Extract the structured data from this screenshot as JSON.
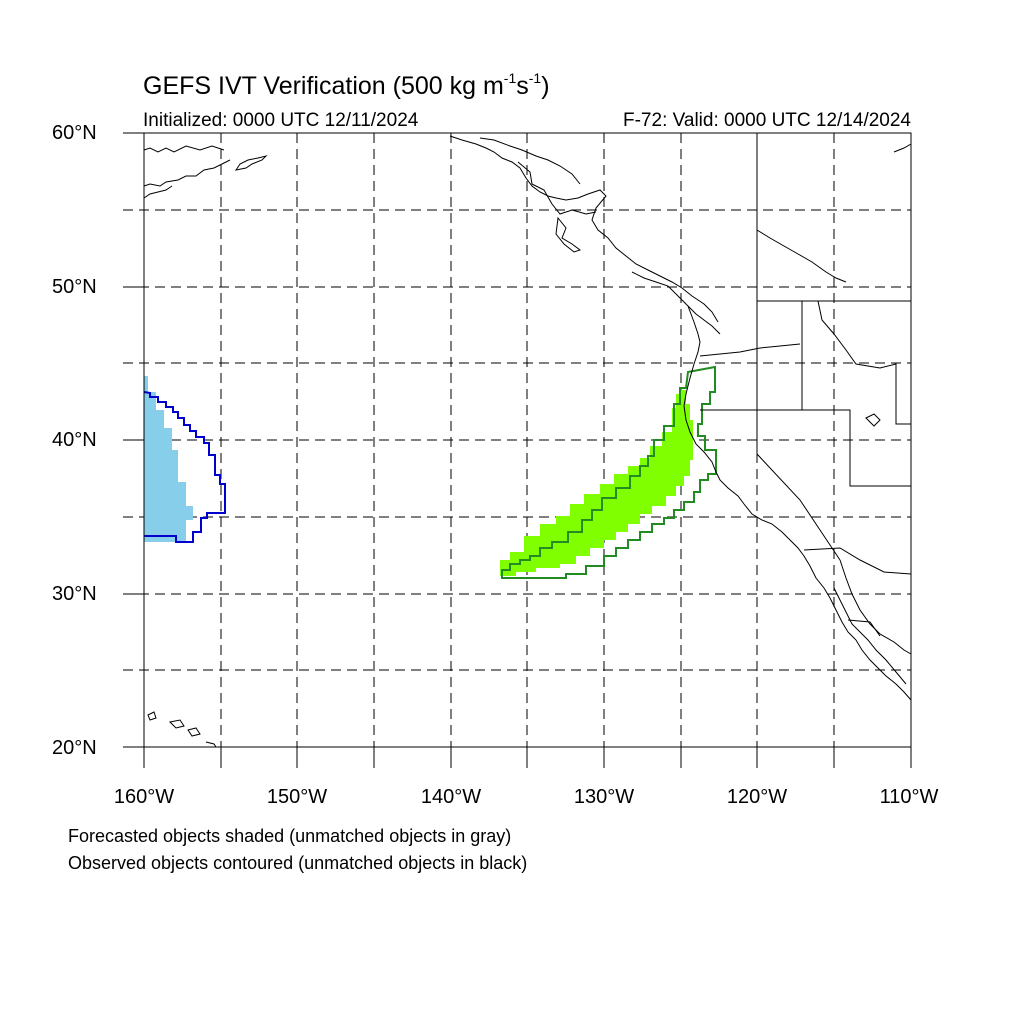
{
  "title": {
    "text": "GEFS IVT Verification (500 kg m",
    "sup1": "-1",
    "mid": "s",
    "sup2": "-1",
    "end": ")"
  },
  "subtitle_left": "Initialized: 0000 UTC 12/11/2024",
  "subtitle_right": "F-72: Valid: 0000 UTC 12/14/2024",
  "lat_labels": [
    "60°N",
    "50°N",
    "40°N",
    "30°N",
    "20°N"
  ],
  "lon_labels": [
    "160°W",
    "150°W",
    "140°W",
    "130°W",
    "120°W",
    "110°W"
  ],
  "footnotes": [
    "Forecasted objects shaded (unmatched objects in gray)",
    "Observed objects contoured (unmatched objects in black)"
  ],
  "colors": {
    "forecast_object_1": "#87ceeb",
    "observed_object_1": "#0000cd",
    "forecast_object_2": "#7fff00",
    "observed_object_2": "#228b22"
  }
}
